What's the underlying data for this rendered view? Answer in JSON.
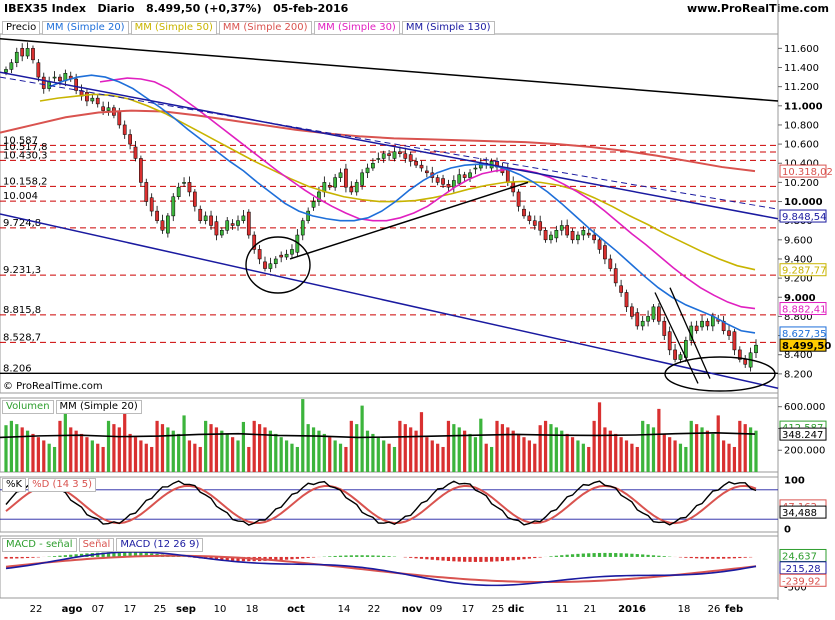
{
  "header": {
    "title": "IBEX35 Index",
    "period": "Diario",
    "last": "8.499,50",
    "change": "(+0,37%)",
    "date": "05-feb-2016",
    "site": "www.ProRealTime.com"
  },
  "price_panel": {
    "legend": [
      {
        "label": "Precio",
        "color": "#000000"
      },
      {
        "label": "MM (Simple 20)",
        "color": "#1e6fd9"
      },
      {
        "label": "MM (Simple 50)",
        "color": "#c8b400"
      },
      {
        "label": "MM (Simple 200)",
        "color": "#d9534f"
      },
      {
        "label": "MM (Simple 30)",
        "color": "#e020c0"
      },
      {
        "label": "MM (Simple 130)",
        "color": "#1a1aa0"
      }
    ],
    "copyright": "© ProRealTime.com",
    "yaxis": [
      "11.600",
      "11.400",
      "11.200",
      "11.000",
      "10.800",
      "10.600",
      "10.400",
      "10.200",
      "10.000",
      "9.800",
      "9.600",
      "9.400",
      "9.200",
      "9.000",
      "8.800",
      "8.600",
      "8.400",
      "8.200"
    ],
    "levels": [
      "10.587",
      "10.517,8",
      "10.430,3",
      "10.158,2",
      "10.004",
      "9.724,8",
      "9.231,3",
      "8.815,8",
      "8.528,7",
      "8.206"
    ],
    "badges": [
      {
        "text": "10.318,02",
        "color": "#d9534f"
      },
      {
        "text": "9.848,54",
        "color": "#1a1aa0"
      },
      {
        "text": "9.287,77",
        "color": "#c8b400"
      },
      {
        "text": "8.882,41",
        "color": "#e020c0"
      },
      {
        "text": "8.627,35",
        "color": "#1e6fd9"
      },
      {
        "text": "8.499,50",
        "color": "#000000"
      }
    ]
  },
  "volume_panel": {
    "legend": [
      {
        "label": "Volumen",
        "color": "#2e9e2e"
      },
      {
        "label": "MM (Simple 20)",
        "color": "#000000"
      }
    ],
    "yaxis": [
      "600.000",
      "400.000",
      "200.000"
    ],
    "badges": [
      {
        "text": "412.587",
        "color": "#2e9e2e"
      },
      {
        "text": "348.247",
        "color": "#000000"
      }
    ]
  },
  "stoch_panel": {
    "legend": [
      {
        "label": "%K",
        "color": "#000000"
      },
      {
        "label": "%D (14 3 5)",
        "color": "#d9534f"
      }
    ],
    "yaxis": [
      "100",
      "0"
    ],
    "badges": [
      {
        "text": "47,162",
        "color": "#d9534f"
      },
      {
        "text": "34,488",
        "color": "#000000"
      }
    ]
  },
  "macd_panel": {
    "legend": [
      {
        "label": "MACD - señal",
        "color": "#2e9e2e"
      },
      {
        "label": "Señal",
        "color": "#d9534f"
      },
      {
        "label": "MACD (12 26 9)",
        "color": "#1a1aa0"
      }
    ],
    "yaxis": [
      "0",
      "-500"
    ],
    "badges": [
      {
        "text": "24,637",
        "color": "#2e9e2e"
      },
      {
        "text": "-215,28",
        "color": "#1a1aa0"
      },
      {
        "text": "-239,92",
        "color": "#d9534f"
      }
    ]
  },
  "xaxis": [
    "22",
    "ago",
    "07",
    "17",
    "25",
    "sep",
    "10",
    "18",
    "oct",
    "14",
    "22",
    "nov",
    "09",
    "17",
    "25",
    "dic",
    "11",
    "21",
    "2016",
    "18",
    "26",
    "feb"
  ],
  "chart_data": {
    "type": "candlestick",
    "instrument": "IBEX35 Index",
    "period": "Diario",
    "ylim": [
      8000,
      11750
    ],
    "levels": [
      10587,
      10517.8,
      10430.3,
      10158.2,
      10004,
      9724.8,
      9231.3,
      8815.8,
      8528.7,
      8206
    ],
    "close_path": [
      11380,
      11450,
      11560,
      11520,
      11600,
      11480,
      11300,
      11180,
      11250,
      11300,
      11260,
      11340,
      11280,
      11160,
      11100,
      11050,
      11080,
      11020,
      10950,
      10980,
      10900,
      10800,
      10700,
      10600,
      10450,
      10200,
      10000,
      9900,
      9800,
      9700,
      9850,
      10050,
      10150,
      10200,
      10100,
      9950,
      9800,
      9850,
      9750,
      9650,
      9700,
      9800,
      9750,
      9800,
      9850,
      9650,
      9500,
      9400,
      9300,
      9350,
      9400,
      9420,
      9450,
      9500,
      9650,
      9800,
      9900,
      10000,
      10100,
      10200,
      10150,
      10250,
      10300,
      10150,
      10100,
      10200,
      10300,
      10350,
      10400,
      10450,
      10500,
      10480,
      10520,
      10500,
      10450,
      10420,
      10380,
      10350,
      10300,
      10250,
      10200,
      10180,
      10150,
      10220,
      10280,
      10250,
      10300,
      10350,
      10400,
      10380,
      10420,
      10360,
      10300,
      10200,
      10100,
      9950,
      9850,
      9800,
      9750,
      9700,
      9600,
      9650,
      9700,
      9750,
      9650,
      9600,
      9650,
      9700,
      9650,
      9600,
      9500,
      9400,
      9300,
      9150,
      9050,
      8900,
      8800,
      8700,
      8750,
      8800,
      8900,
      8750,
      8600,
      8450,
      8350,
      8400,
      8550,
      8700,
      8650,
      8750,
      8700,
      8800,
      8750,
      8650,
      8600,
      8450,
      8350,
      8300,
      8420,
      8499.5
    ],
    "ma20_path": [
      11200,
      11260,
      11300,
      11320,
      11300,
      11250,
      11180,
      11080,
      10980,
      10870,
      10750,
      10640,
      10530,
      10420,
      10320,
      10200,
      10090,
      9980,
      9900,
      9850,
      9820,
      9800,
      9800,
      9830,
      9900,
      10000,
      10120,
      10220,
      10300,
      10350,
      10380,
      10390,
      10380,
      10340,
      10280,
      10200,
      10100,
      9980,
      9850,
      9720,
      9600,
      9480,
      9350,
      9220,
      9100,
      9000,
      8920,
      8860,
      8800,
      8720,
      8650,
      8627.35
    ],
    "ma30_path": [
      11250,
      11270,
      11290,
      11280,
      11250,
      11180,
      11080,
      10980,
      10870,
      10760,
      10650,
      10540,
      10430,
      10320,
      10220,
      10120,
      10030,
      9950,
      9880,
      9820,
      9800,
      9800,
      9830,
      9880,
      9950,
      10050,
      10150,
      10230,
      10290,
      10320,
      10340,
      10330,
      10300,
      10250,
      10180,
      10100,
      10010,
      9900,
      9780,
      9660,
      9550,
      9430,
      9310,
      9200,
      9100,
      9020,
      8950,
      8900,
      8882.41
    ],
    "ma50_path": [
      11050,
      11080,
      11100,
      11120,
      11110,
      11070,
      11000,
      10920,
      10820,
      10720,
      10620,
      10520,
      10420,
      10330,
      10240,
      10160,
      10100,
      10050,
      10020,
      10000,
      10000,
      10010,
      10040,
      10080,
      10130,
      10170,
      10200,
      10210,
      10200,
      10170,
      10120,
      10040,
      9950,
      9850,
      9760,
      9660,
      9570,
      9480,
      9400,
      9330,
      9287.77
    ],
    "ma200_path": [
      10720,
      10800,
      10880,
      10930,
      10950,
      10940,
      10900,
      10850,
      10800,
      10750,
      10710,
      10680,
      10660,
      10650,
      10640,
      10630,
      10620,
      10600,
      10570,
      10530,
      10480,
      10420,
      10360,
      10318.02
    ],
    "volume_ma20": [
      318000,
      332000,
      338000,
      325000,
      330000,
      345000,
      352000,
      336000,
      330000,
      318000,
      322000,
      330000,
      338000,
      345000,
      338000,
      336000,
      340000,
      352000,
      360000,
      348247
    ],
    "volume_last": 412587,
    "stoch": {
      "k_last": 34.488,
      "d_last": 47.162,
      "ylim": [
        0,
        100
      ]
    },
    "macd": {
      "macd_minus_signal_last": 24.637,
      "macd_last": -215.28,
      "signal_last": -239.92
    }
  }
}
